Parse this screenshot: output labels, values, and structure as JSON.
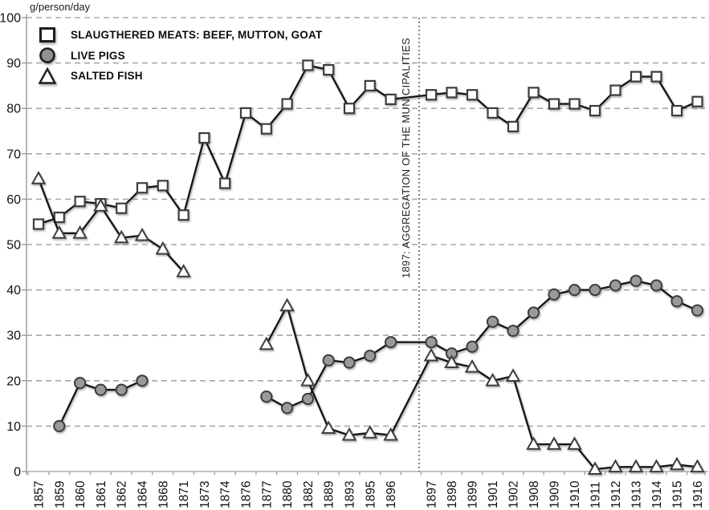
{
  "unit_label": "g/person/day",
  "legend": {
    "items": [
      {
        "label": "SLAUGTHERED MEATS: BEEF, MUTTON, GOAT",
        "icon": "square-marker-icon"
      },
      {
        "label": "LIVE PIGS",
        "icon": "circle-marker-icon"
      },
      {
        "label": "SALTED FISH",
        "icon": "triangle-marker-icon"
      }
    ]
  },
  "separator": {
    "label": "1897: AGGREGATION OF THE MUNICIPALITIES",
    "position_between": [
      "1896",
      "1897"
    ],
    "style": "vertical-dotted-line"
  },
  "colors": {
    "line": "#151515",
    "marker_stroke": "#3c3c3c",
    "square_fill": "#ffffff",
    "circle_fill": "#9a9a9a",
    "triangle_fill": "#ffffff",
    "grid": "#a8a8a8",
    "axis": "#9f9f9f",
    "text": "#111111"
  },
  "chart_data": {
    "type": "line",
    "title": "",
    "xlabel": "",
    "ylabel": "g/person/day",
    "ylim": [
      0,
      100
    ],
    "ytick_interval": 10,
    "grid": "horizontal-dashed",
    "legend_position": "top-left-inside",
    "x_axis_note": "categorical years, axis gap between 1896 and 1897 marked by dotted line",
    "categories": [
      "1857",
      "1859",
      "1860",
      "1861",
      "1862",
      "1864",
      "1868",
      "1871",
      "1873",
      "1874",
      "1876",
      "1877",
      "1880",
      "1882",
      "1889",
      "1893",
      "1895",
      "1896",
      "1897",
      "1898",
      "1899",
      "1901",
      "1902",
      "1908",
      "1909",
      "1910",
      "1911",
      "1912",
      "1913",
      "1914",
      "1915",
      "1916"
    ],
    "series": [
      {
        "name": "SLAUGTHERED MEATS: BEEF, MUTTON, GOAT",
        "marker": "square",
        "values": [
          54.5,
          56,
          59.5,
          59,
          58,
          62.5,
          63,
          56.5,
          73.5,
          63.5,
          79,
          75.5,
          81,
          89.5,
          88.5,
          80,
          85,
          82,
          83,
          83.5,
          83,
          79,
          76,
          83.5,
          81,
          81,
          79.5,
          84,
          87,
          87,
          79.5,
          81.5
        ]
      },
      {
        "name": "LIVE PIGS",
        "marker": "circle",
        "values": [
          null,
          10,
          19.5,
          18,
          18,
          20,
          null,
          null,
          null,
          null,
          null,
          16.5,
          14,
          16,
          24.5,
          24,
          25.5,
          28.5,
          28.5,
          26,
          27.5,
          33,
          31,
          35,
          39,
          40,
          40,
          41,
          42,
          41,
          37.5,
          35.5
        ]
      },
      {
        "name": "SALTED FISH",
        "marker": "triangle",
        "values": [
          64.5,
          52.5,
          52.5,
          58.5,
          51.5,
          52,
          49,
          44,
          null,
          null,
          null,
          28,
          36.5,
          20,
          9.5,
          8,
          8.5,
          8,
          25.5,
          24,
          23,
          20,
          21,
          6,
          6,
          6,
          0.5,
          1,
          1,
          1,
          1.5,
          1
        ]
      }
    ],
    "annotation": "1897: AGGREGATION OF THE MUNICIPALITIES"
  }
}
